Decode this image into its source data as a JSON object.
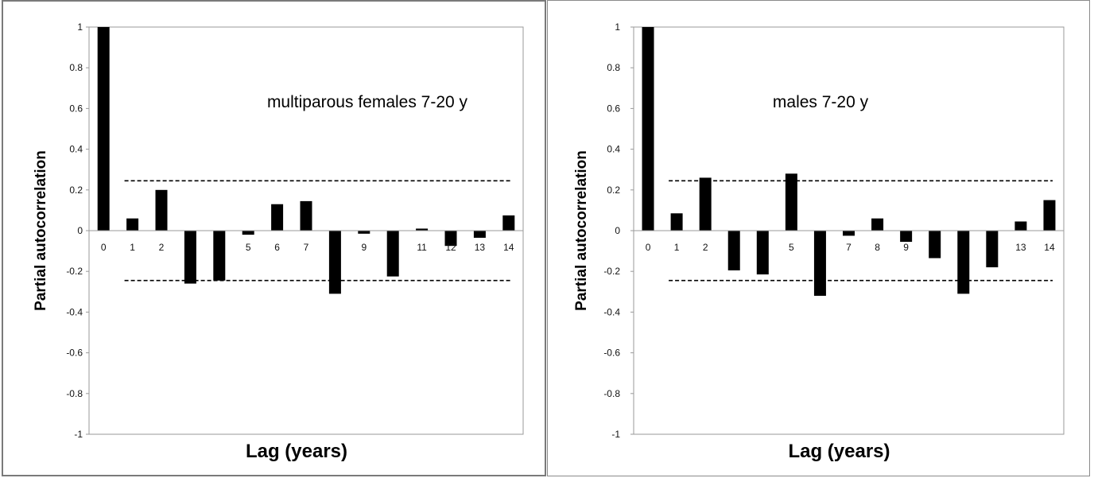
{
  "chart_data": [
    {
      "type": "bar",
      "annotation": "multiparous females 7-20 y",
      "xlabel": "Lag (years)",
      "ylabel": "Partial autocorrelation",
      "ylim": [
        -1,
        1
      ],
      "yticks": [
        "1",
        "0.8",
        "0.6",
        "0.4",
        "0.2",
        "0",
        "-0.2",
        "-0.4",
        "-0.6",
        "-0.8",
        "-1"
      ],
      "categories": [
        "0",
        "1",
        "2",
        "3",
        "4",
        "5",
        "6",
        "7",
        "8",
        "9",
        "10",
        "11",
        "12",
        "13",
        "14"
      ],
      "category_labels": [
        "0",
        "1",
        "2",
        "",
        "",
        "5",
        "6",
        "7",
        "",
        "9",
        "",
        "11",
        "12",
        "13",
        "14"
      ],
      "values": [
        1.0,
        0.06,
        0.2,
        -0.26,
        -0.245,
        -0.02,
        0.13,
        0.145,
        -0.31,
        -0.015,
        -0.225,
        0.01,
        -0.075,
        -0.035,
        0.075
      ],
      "confidence_band": [
        0.245,
        -0.245
      ]
    },
    {
      "type": "bar",
      "annotation": "males 7-20 y",
      "xlabel": "Lag (years)",
      "ylabel": "Partial autocorrelation",
      "ylim": [
        -1,
        1
      ],
      "yticks": [
        "1",
        "0.8",
        "0.6",
        "0.4",
        "0.2",
        "0",
        "-0.2",
        "-0.4",
        "-0.6",
        "-0.8",
        "-1"
      ],
      "categories": [
        "0",
        "1",
        "2",
        "3",
        "4",
        "5",
        "6",
        "7",
        "8",
        "9",
        "10",
        "11",
        "12",
        "13",
        "14"
      ],
      "category_labels": [
        "0",
        "1",
        "2",
        "",
        "",
        "5",
        "",
        "7",
        "8",
        "9",
        "",
        "",
        "",
        "13",
        "14"
      ],
      "values": [
        1.0,
        0.085,
        0.26,
        -0.195,
        -0.215,
        0.28,
        -0.32,
        -0.025,
        0.06,
        -0.055,
        -0.135,
        -0.31,
        -0.18,
        0.045,
        0.15
      ],
      "confidence_band": [
        0.245,
        -0.245
      ]
    }
  ]
}
